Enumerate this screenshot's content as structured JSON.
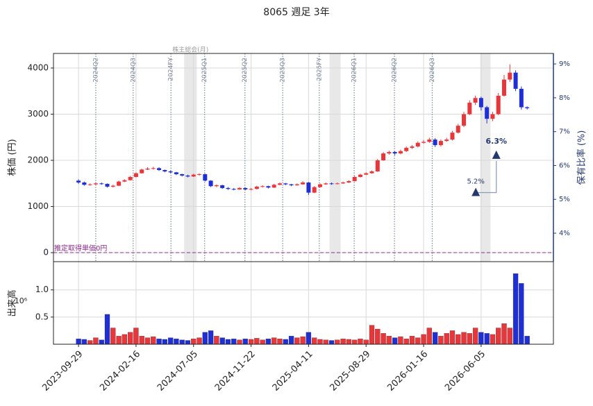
{
  "chart_data": [
    {
      "type": "candlestick",
      "title": "8065 週足 3年",
      "ylabel": "株価 (円)",
      "y2label": "保有比率 (%)",
      "x": [
        "2023-09-29",
        "2023-10-13",
        "2023-10-27",
        "2023-11-10",
        "2023-11-24",
        "2023-12-08",
        "2023-12-22",
        "2024-01-05",
        "2024-01-19",
        "2024-02-02",
        "2024-02-16",
        "2024-03-01",
        "2024-03-15",
        "2024-03-29",
        "2024-04-12",
        "2024-04-26",
        "2024-05-10",
        "2024-05-24",
        "2024-06-07",
        "2024-06-21",
        "2024-07-05",
        "2024-07-19",
        "2024-08-02",
        "2024-08-16",
        "2024-08-30",
        "2024-09-13",
        "2024-09-27",
        "2024-10-11",
        "2024-10-25",
        "2024-11-08",
        "2024-11-22",
        "2024-12-06",
        "2024-12-20",
        "2025-01-03",
        "2025-01-17",
        "2025-01-31",
        "2025-02-14",
        "2025-02-28",
        "2025-03-14",
        "2025-03-28",
        "2025-04-11",
        "2025-04-25",
        "2025-05-09",
        "2025-05-23",
        "2025-06-06",
        "2025-06-20",
        "2025-07-04",
        "2025-07-18",
        "2025-08-01",
        "2025-08-15",
        "2025-08-29",
        "2025-09-12",
        "2025-09-26",
        "2025-10-10",
        "2025-10-24",
        "2025-11-07",
        "2025-11-21",
        "2025-12-05",
        "2025-12-19",
        "2026-01-02",
        "2026-01-16",
        "2026-01-30",
        "2026-02-13",
        "2026-02-27",
        "2026-03-13",
        "2026-03-27",
        "2026-04-10",
        "2026-04-24",
        "2026-05-08",
        "2026-05-22",
        "2026-06-05",
        "2026-06-19",
        "2026-07-03",
        "2026-07-17",
        "2026-07-31",
        "2026-08-14",
        "2026-08-28",
        "2026-09-11",
        "2026-09-25"
      ],
      "open": [
        1560,
        1520,
        1470,
        1480,
        1500,
        1490,
        1430,
        1450,
        1540,
        1570,
        1640,
        1720,
        1800,
        1820,
        1830,
        1790,
        1760,
        1740,
        1700,
        1670,
        1650,
        1690,
        1700,
        1560,
        1440,
        1460,
        1400,
        1380,
        1370,
        1400,
        1370,
        1380,
        1430,
        1440,
        1410,
        1470,
        1500,
        1480,
        1460,
        1480,
        1520,
        1300,
        1420,
        1480,
        1500,
        1490,
        1500,
        1520,
        1550,
        1640,
        1690,
        1720,
        1760,
        2000,
        2150,
        2180,
        2150,
        2200,
        2270,
        2300,
        2380,
        2400,
        2450,
        2330,
        2420,
        2450,
        2600,
        2750,
        3000,
        3250,
        3350,
        3150,
        2900,
        3000,
        3400,
        3750,
        3900,
        3550,
        3150
      ],
      "high": [
        1590,
        1540,
        1500,
        1520,
        1520,
        1500,
        1470,
        1560,
        1590,
        1660,
        1740,
        1820,
        1850,
        1860,
        1850,
        1800,
        1780,
        1750,
        1710,
        1690,
        1710,
        1720,
        1710,
        1570,
        1480,
        1470,
        1420,
        1400,
        1420,
        1410,
        1400,
        1450,
        1460,
        1450,
        1490,
        1520,
        1510,
        1490,
        1500,
        1550,
        1530,
        1440,
        1500,
        1520,
        1520,
        1520,
        1540,
        1570,
        1660,
        1710,
        1740,
        1780,
        2030,
        2180,
        2210,
        2200,
        2230,
        2300,
        2330,
        2410,
        2440,
        2490,
        2480,
        2450,
        2490,
        2640,
        2790,
        3050,
        3300,
        3400,
        3380,
        3180,
        3050,
        3460,
        3850,
        4080,
        3950,
        3600,
        3170
      ],
      "low": [
        1490,
        1450,
        1450,
        1460,
        1470,
        1410,
        1410,
        1440,
        1530,
        1560,
        1630,
        1710,
        1790,
        1800,
        1770,
        1740,
        1720,
        1680,
        1650,
        1630,
        1640,
        1670,
        1540,
        1420,
        1420,
        1380,
        1360,
        1350,
        1360,
        1350,
        1350,
        1370,
        1410,
        1390,
        1400,
        1460,
        1460,
        1440,
        1450,
        1470,
        1250,
        1290,
        1410,
        1470,
        1470,
        1480,
        1490,
        1510,
        1540,
        1630,
        1680,
        1710,
        1750,
        1990,
        2120,
        2110,
        2130,
        2180,
        2250,
        2280,
        2360,
        2380,
        2290,
        2300,
        2400,
        2430,
        2580,
        2720,
        2980,
        3200,
        3080,
        2800,
        2850,
        2980,
        3380,
        3700,
        3500,
        3100,
        3100
      ],
      "close": [
        1520,
        1470,
        1480,
        1500,
        1490,
        1430,
        1450,
        1540,
        1570,
        1640,
        1720,
        1800,
        1820,
        1830,
        1790,
        1760,
        1740,
        1700,
        1670,
        1650,
        1690,
        1700,
        1560,
        1440,
        1460,
        1400,
        1380,
        1370,
        1400,
        1370,
        1380,
        1430,
        1440,
        1410,
        1470,
        1500,
        1480,
        1460,
        1480,
        1520,
        1300,
        1420,
        1480,
        1500,
        1490,
        1500,
        1520,
        1550,
        1640,
        1690,
        1720,
        1760,
        2000,
        2150,
        2180,
        2150,
        2200,
        2270,
        2300,
        2380,
        2400,
        2450,
        2330,
        2420,
        2450,
        2600,
        2750,
        3000,
        3250,
        3350,
        3150,
        2900,
        3000,
        3400,
        3750,
        3900,
        3550,
        3150,
        3130
      ],
      "up_color": "#e8363a",
      "down_color": "#1f2fd6",
      "xlim": [
        "2023-07-30",
        "2026-11-28"
      ],
      "xticks": [
        "2023-09-29",
        "2024-02-16",
        "2024-07-05",
        "2024-11-22",
        "2025-04-11",
        "2025-08-29",
        "2026-01-16",
        "2026-06-05"
      ],
      "ylim": [
        -195,
        4316
      ],
      "yticks": [
        0,
        1000,
        2000,
        3000,
        4000
      ],
      "y2lim": [
        3.16,
        9.31
      ],
      "y2ticks": [
        {
          "value": 4,
          "label": "4%"
        },
        {
          "value": 5,
          "label": "5%"
        },
        {
          "value": 6,
          "label": "6%"
        },
        {
          "value": 7,
          "label": "7%"
        },
        {
          "value": 8,
          "label": "8%"
        },
        {
          "value": 9,
          "label": "9%"
        }
      ],
      "grid": true,
      "events": [
        {
          "date": "2023-11-10",
          "label": "2024Q2"
        },
        {
          "date": "2024-02-09",
          "label": "2024Q3"
        },
        {
          "date": "2024-05-11",
          "label": "2024FY"
        },
        {
          "date": "2024-08-01",
          "label": "2025Q1"
        },
        {
          "date": "2024-11-07",
          "label": "2025Q2"
        },
        {
          "date": "2025-02-07",
          "label": "2025Q3"
        },
        {
          "date": "2025-05-07",
          "label": "2025FY"
        },
        {
          "date": "2025-07-31",
          "label": "2026Q1"
        },
        {
          "date": "2025-11-06",
          "label": "2026Q2"
        },
        {
          "date": "2026-02-06",
          "label": "2026Q3"
        }
      ],
      "shaded": [
        {
          "start": "2024-06-12",
          "end": "2024-07-13"
        },
        {
          "start": "2025-06-01",
          "end": "2025-06-28"
        },
        {
          "start": "2026-06-03",
          "end": "2026-06-28"
        }
      ],
      "shaded_label": "株主総会(月)",
      "hline": {
        "value": 0,
        "label": "推定取得単価0円",
        "color": "#8b2a8b"
      },
      "holdings": {
        "x": [
          "2026-05-23",
          "2026-07-12"
        ],
        "values": [
          5.2,
          6.3
        ],
        "value_labels": [
          "5.2%",
          "6.3%"
        ],
        "axis": "y2",
        "color": "#24386e"
      }
    },
    {
      "type": "volume",
      "ylabel": "出来高",
      "offset_label": "10⁶",
      "values": [
        0.1,
        0.09,
        0.07,
        0.12,
        0.08,
        0.55,
        0.3,
        0.15,
        0.18,
        0.22,
        0.3,
        0.15,
        0.12,
        0.14,
        0.1,
        0.09,
        0.12,
        0.1,
        0.08,
        0.07,
        0.1,
        0.12,
        0.22,
        0.25,
        0.15,
        0.12,
        0.09,
        0.1,
        0.08,
        0.1,
        0.09,
        0.11,
        0.08,
        0.1,
        0.12,
        0.1,
        0.09,
        0.15,
        0.12,
        0.14,
        0.22,
        0.12,
        0.09,
        0.08,
        0.07,
        0.08,
        0.1,
        0.09,
        0.08,
        0.1,
        0.08,
        0.35,
        0.28,
        0.2,
        0.15,
        0.12,
        0.14,
        0.1,
        0.15,
        0.12,
        0.18,
        0.3,
        0.22,
        0.15,
        0.2,
        0.25,
        0.18,
        0.22,
        0.2,
        0.3,
        0.22,
        0.2,
        0.18,
        0.3,
        0.38,
        0.3,
        1.3,
        1.12,
        0.15
      ],
      "ylim": [
        0,
        1.52
      ],
      "yticks": [
        0.5,
        {
          "value": 1,
          "label": "1.0"
        }
      ],
      "grid": true
    }
  ]
}
